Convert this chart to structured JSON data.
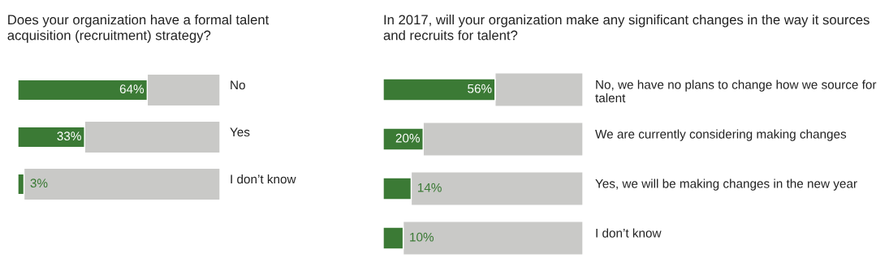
{
  "chart_data": [
    {
      "type": "bar",
      "orientation": "horizontal",
      "stacked": true,
      "title": "Does your organization have a formal talent acquisition (recruitment) strategy?",
      "categories": [
        "No",
        "Yes",
        "I don’t know"
      ],
      "series": [
        {
          "color": "#3b7a35",
          "values": [
            64,
            33,
            3
          ],
          "value_labels": [
            "64%",
            "33%",
            "3%"
          ]
        },
        {
          "color": "#c9c9c7",
          "values": [
            36,
            67,
            97
          ]
        }
      ],
      "xlim": [
        0,
        100
      ],
      "tick_labels": "y"
    },
    {
      "type": "bar",
      "orientation": "horizontal",
      "stacked": true,
      "title": "In 2017, will your organization make any significant changes in the way it sources and recruits for talent?",
      "categories": [
        "No, we have no plans to change how we source for talent",
        "We are currently considering making changes",
        "Yes, we will be making changes in the new year",
        "I don’t know"
      ],
      "series": [
        {
          "color": "#3b7a35",
          "values": [
            56,
            20,
            14,
            10
          ],
          "value_labels": [
            "56%",
            "20%",
            "14%",
            "10%"
          ]
        },
        {
          "color": "#c9c9c7",
          "values": [
            44,
            80,
            86,
            90
          ]
        }
      ],
      "xlim": [
        0,
        100
      ],
      "tick_labels": "y"
    }
  ]
}
